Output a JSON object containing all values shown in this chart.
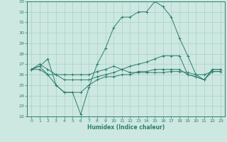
{
  "xlabel": "Humidex (Indice chaleur)",
  "x": [
    0,
    1,
    2,
    3,
    4,
    5,
    6,
    7,
    8,
    9,
    10,
    11,
    12,
    13,
    14,
    15,
    16,
    17,
    18,
    19,
    20,
    21,
    22,
    23
  ],
  "series": [
    [
      26.5,
      27.0,
      26.5,
      26.0,
      26.0,
      26.0,
      26.0,
      26.0,
      26.3,
      26.5,
      26.8,
      26.5,
      26.2,
      26.2,
      26.2,
      26.2,
      26.2,
      26.3,
      26.3,
      26.2,
      26.0,
      26.0,
      26.3,
      26.3
    ],
    [
      26.5,
      26.8,
      27.5,
      25.0,
      24.3,
      24.3,
      22.2,
      24.8,
      27.0,
      28.5,
      30.5,
      31.5,
      31.5,
      32.0,
      32.0,
      33.0,
      32.5,
      31.5,
      29.5,
      27.8,
      26.0,
      25.5,
      26.5,
      26.5
    ],
    [
      26.5,
      26.8,
      26.0,
      26.0,
      25.5,
      25.5,
      25.5,
      25.5,
      25.8,
      26.0,
      26.2,
      26.5,
      26.8,
      27.0,
      27.2,
      27.5,
      27.8,
      27.8,
      27.8,
      26.0,
      25.8,
      25.5,
      26.5,
      26.5
    ],
    [
      26.5,
      26.5,
      26.0,
      25.0,
      24.3,
      24.3,
      24.3,
      25.0,
      25.5,
      25.8,
      25.8,
      26.0,
      26.0,
      26.3,
      26.3,
      26.5,
      26.5,
      26.5,
      26.5,
      26.0,
      25.8,
      25.5,
      26.3,
      26.3
    ]
  ],
  "color": "#2e7d6e",
  "bg_color": "#cce8e0",
  "grid_color": "#aacfc8",
  "ylim": [
    22,
    33
  ],
  "xlim": [
    -0.5,
    23.5
  ],
  "yticks": [
    22,
    23,
    24,
    25,
    26,
    27,
    28,
    29,
    30,
    31,
    32,
    33
  ],
  "xticks": [
    0,
    1,
    2,
    3,
    4,
    5,
    6,
    7,
    8,
    9,
    10,
    11,
    12,
    13,
    14,
    15,
    16,
    17,
    18,
    19,
    20,
    21,
    22,
    23
  ]
}
